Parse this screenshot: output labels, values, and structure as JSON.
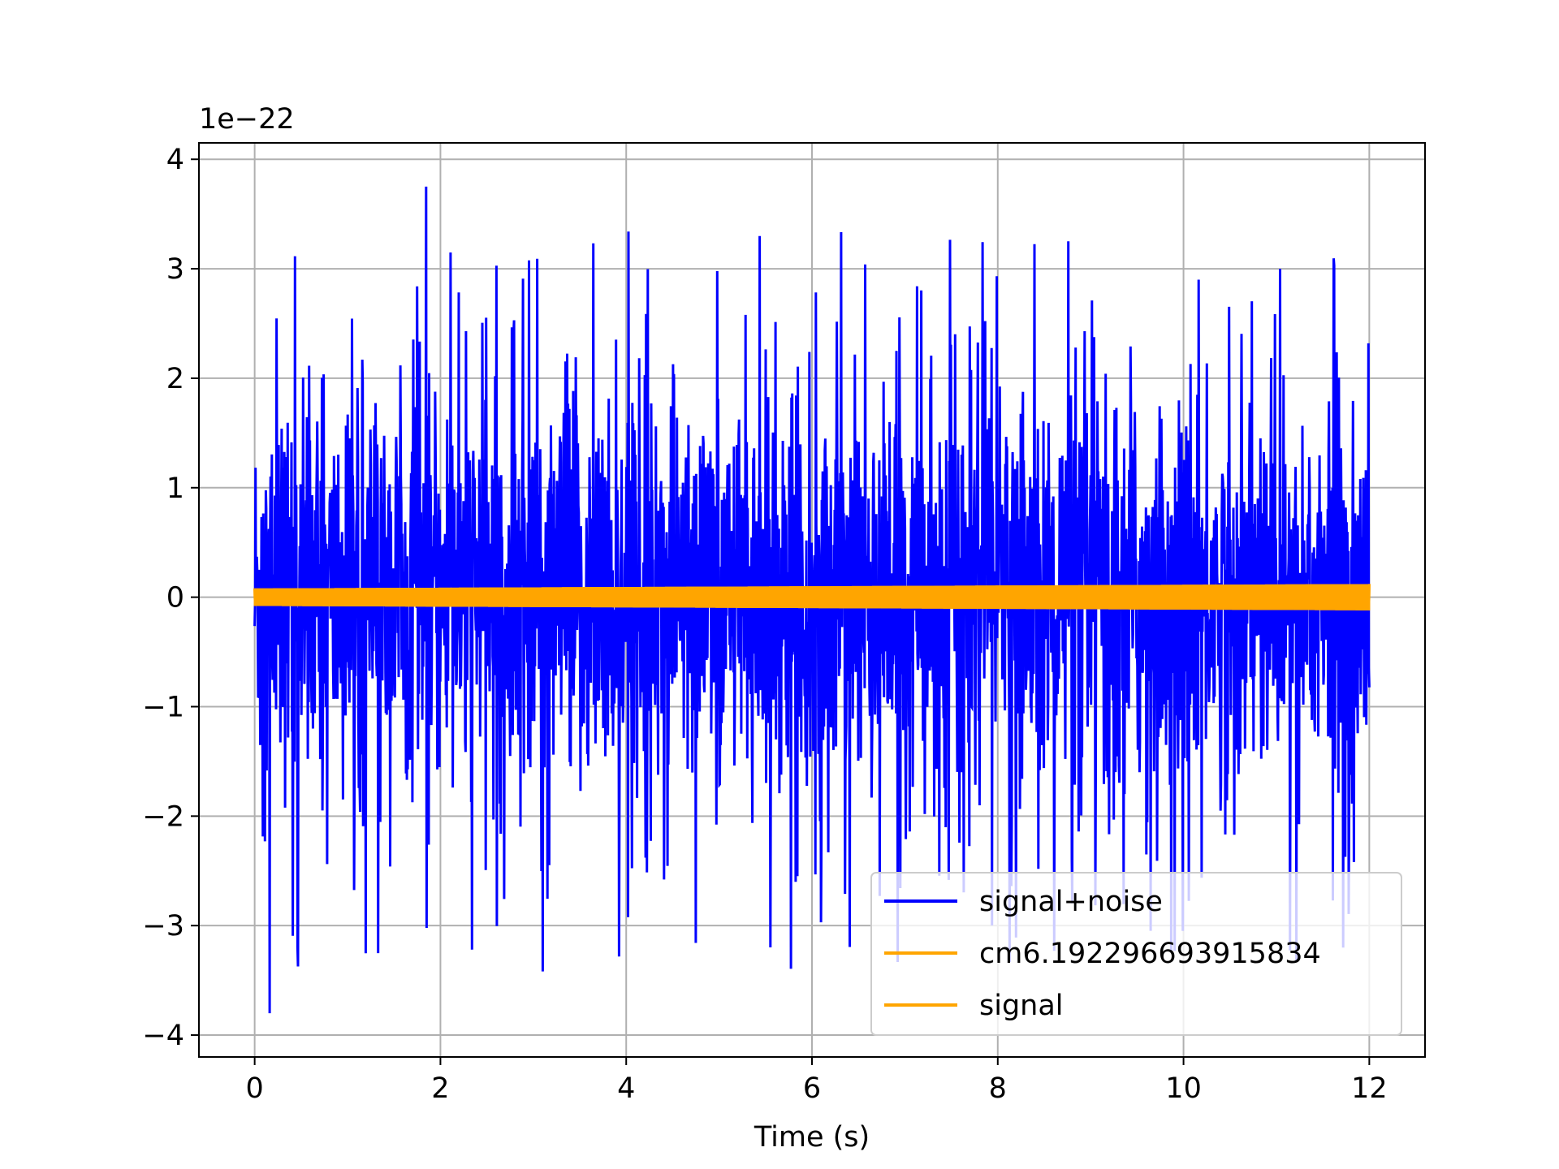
{
  "chart_data": {
    "type": "line",
    "title": "",
    "xlabel": "Time (s)",
    "ylabel": "",
    "y_offset_text": "1e−22",
    "y_scale_multiplier": 1e-22,
    "xlim": [
      -0.6,
      12.6
    ],
    "ylim": [
      -4.2,
      4.15
    ],
    "x_ticks": [
      0,
      2,
      4,
      6,
      8,
      10,
      12
    ],
    "x_tick_labels": [
      "0",
      "2",
      "4",
      "6",
      "8",
      "10",
      "12"
    ],
    "y_ticks": [
      -4,
      -3,
      -2,
      -1,
      0,
      1,
      2,
      3,
      4
    ],
    "y_tick_labels": [
      "−4",
      "−3",
      "−2",
      "−1",
      "0",
      "1",
      "2",
      "3",
      "4"
    ],
    "grid": true,
    "legend_position": "lower-right",
    "x_range_of_data": [
      0,
      12
    ],
    "series": [
      {
        "name": "signal+noise",
        "color": "#0000ff",
        "style": "dense noisy oscillation",
        "typical_band": [
          -1.6,
          1.5
        ],
        "max_peak": 3.75,
        "min_trough": -3.8
      },
      {
        "name": "cm6.192296693915834",
        "color": "#ffa500",
        "style": "dense chirp oscillation",
        "amplitude_start": 0.08,
        "amplitude_end": 0.12
      },
      {
        "name": "signal",
        "color": "#ffa500",
        "style": "dense chirp oscillation",
        "amplitude_start": 0.08,
        "amplitude_end": 0.12
      }
    ]
  }
}
